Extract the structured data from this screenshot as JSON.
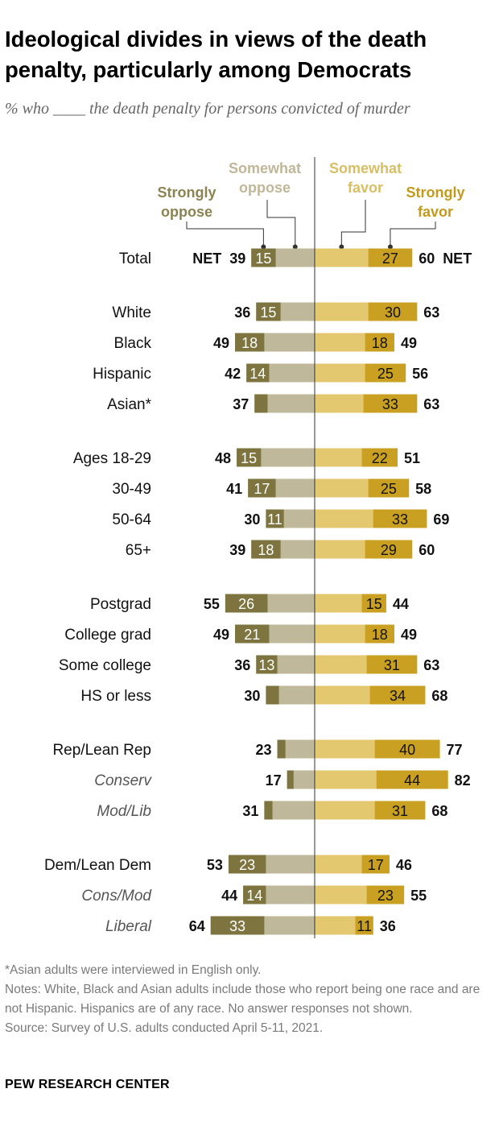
{
  "title": "Ideological divides in views of the death penalty, particularly among Democrats",
  "subtitle": "% who ____ the death penalty for persons convicted of murder",
  "colors": {
    "strongly_oppose": "#7d7440",
    "somewhat_oppose": "#bfb89a",
    "somewhat_favor": "#e4c870",
    "strongly_favor": "#c9a021",
    "oppose_label": "#8b8351",
    "somewhat_oppose_label": "#bfb798",
    "somewhat_favor_label": "#d8bf63",
    "strongly_favor_label": "#c39a1d"
  },
  "chart_data": {
    "type": "diverging_bar",
    "legend": {
      "strongly_oppose": "Strongly oppose",
      "somewhat_oppose": "Somewhat oppose",
      "somewhat_favor": "Somewhat favor",
      "strongly_favor": "Strongly favor",
      "net_label": "NET"
    },
    "rows": [
      {
        "label": "Total",
        "italic": false,
        "group": 0,
        "oppose_net": 39,
        "strongly_oppose": 15,
        "favor_net": 60,
        "strongly_favor": 27,
        "show_net_word": true
      },
      {
        "label": "White",
        "italic": false,
        "group": 1,
        "oppose_net": 36,
        "strongly_oppose": 15,
        "favor_net": 63,
        "strongly_favor": 30
      },
      {
        "label": "Black",
        "italic": false,
        "group": 1,
        "oppose_net": 49,
        "strongly_oppose": 18,
        "favor_net": 49,
        "strongly_favor": 18
      },
      {
        "label": "Hispanic",
        "italic": false,
        "group": 1,
        "oppose_net": 42,
        "strongly_oppose": 14,
        "favor_net": 56,
        "strongly_favor": 25
      },
      {
        "label": "Asian*",
        "italic": false,
        "group": 1,
        "oppose_net": 37,
        "strongly_oppose": null,
        "favor_net": 63,
        "strongly_favor": 33
      },
      {
        "label": "Ages 18-29",
        "italic": false,
        "group": 2,
        "oppose_net": 48,
        "strongly_oppose": 15,
        "favor_net": 51,
        "strongly_favor": 22
      },
      {
        "label": "30-49",
        "italic": false,
        "group": 2,
        "oppose_net": 41,
        "strongly_oppose": 17,
        "favor_net": 58,
        "strongly_favor": 25
      },
      {
        "label": "50-64",
        "italic": false,
        "group": 2,
        "oppose_net": 30,
        "strongly_oppose": 11,
        "favor_net": 69,
        "strongly_favor": 33
      },
      {
        "label": "65+",
        "italic": false,
        "group": 2,
        "oppose_net": 39,
        "strongly_oppose": 18,
        "favor_net": 60,
        "strongly_favor": 29
      },
      {
        "label": "Postgrad",
        "italic": false,
        "group": 3,
        "oppose_net": 55,
        "strongly_oppose": 26,
        "favor_net": 44,
        "strongly_favor": 15
      },
      {
        "label": "College grad",
        "italic": false,
        "group": 3,
        "oppose_net": 49,
        "strongly_oppose": 21,
        "favor_net": 49,
        "strongly_favor": 18
      },
      {
        "label": "Some college",
        "italic": false,
        "group": 3,
        "oppose_net": 36,
        "strongly_oppose": 13,
        "favor_net": 63,
        "strongly_favor": 31
      },
      {
        "label": "HS or less",
        "italic": false,
        "group": 3,
        "oppose_net": 30,
        "strongly_oppose": null,
        "favor_net": 68,
        "strongly_favor": 34
      },
      {
        "label": "Rep/Lean Rep",
        "italic": false,
        "group": 4,
        "oppose_net": 23,
        "strongly_oppose": null,
        "favor_net": 77,
        "strongly_favor": 40
      },
      {
        "label": "Conserv",
        "italic": true,
        "group": 4,
        "oppose_net": 17,
        "strongly_oppose": null,
        "favor_net": 82,
        "strongly_favor": 44
      },
      {
        "label": "Mod/Lib",
        "italic": true,
        "group": 4,
        "oppose_net": 31,
        "strongly_oppose": null,
        "favor_net": 68,
        "strongly_favor": 31
      },
      {
        "label": "Dem/Lean Dem",
        "italic": false,
        "group": 5,
        "oppose_net": 53,
        "strongly_oppose": 23,
        "favor_net": 46,
        "strongly_favor": 17
      },
      {
        "label": "Cons/Mod",
        "italic": true,
        "group": 5,
        "oppose_net": 44,
        "strongly_oppose": 14,
        "favor_net": 55,
        "strongly_favor": 23
      },
      {
        "label": "Liberal",
        "italic": true,
        "group": 5,
        "oppose_net": 64,
        "strongly_oppose": 33,
        "favor_net": 36,
        "strongly_favor": 11
      }
    ],
    "hidden_values": {
      "strongly_oppose": {
        "Asian*": 8,
        "HS or less": 8,
        "Rep/Lean Rep": 5,
        "Conserv": 4,
        "Mod/Lib": 5
      },
      "note": "unlabeled strongly-oppose segments estimated from bar lengths"
    }
  },
  "notes": {
    "asterisk": "*Asian adults were interviewed in English only.",
    "notes": "Notes: White, Black and Asian adults include those who report being one race and are not Hispanic. Hispanics are of any race. No answer responses not shown.",
    "source": "Source: Survey of U.S. adults conducted April 5-11, 2021."
  },
  "footer": "PEW RESEARCH CENTER"
}
